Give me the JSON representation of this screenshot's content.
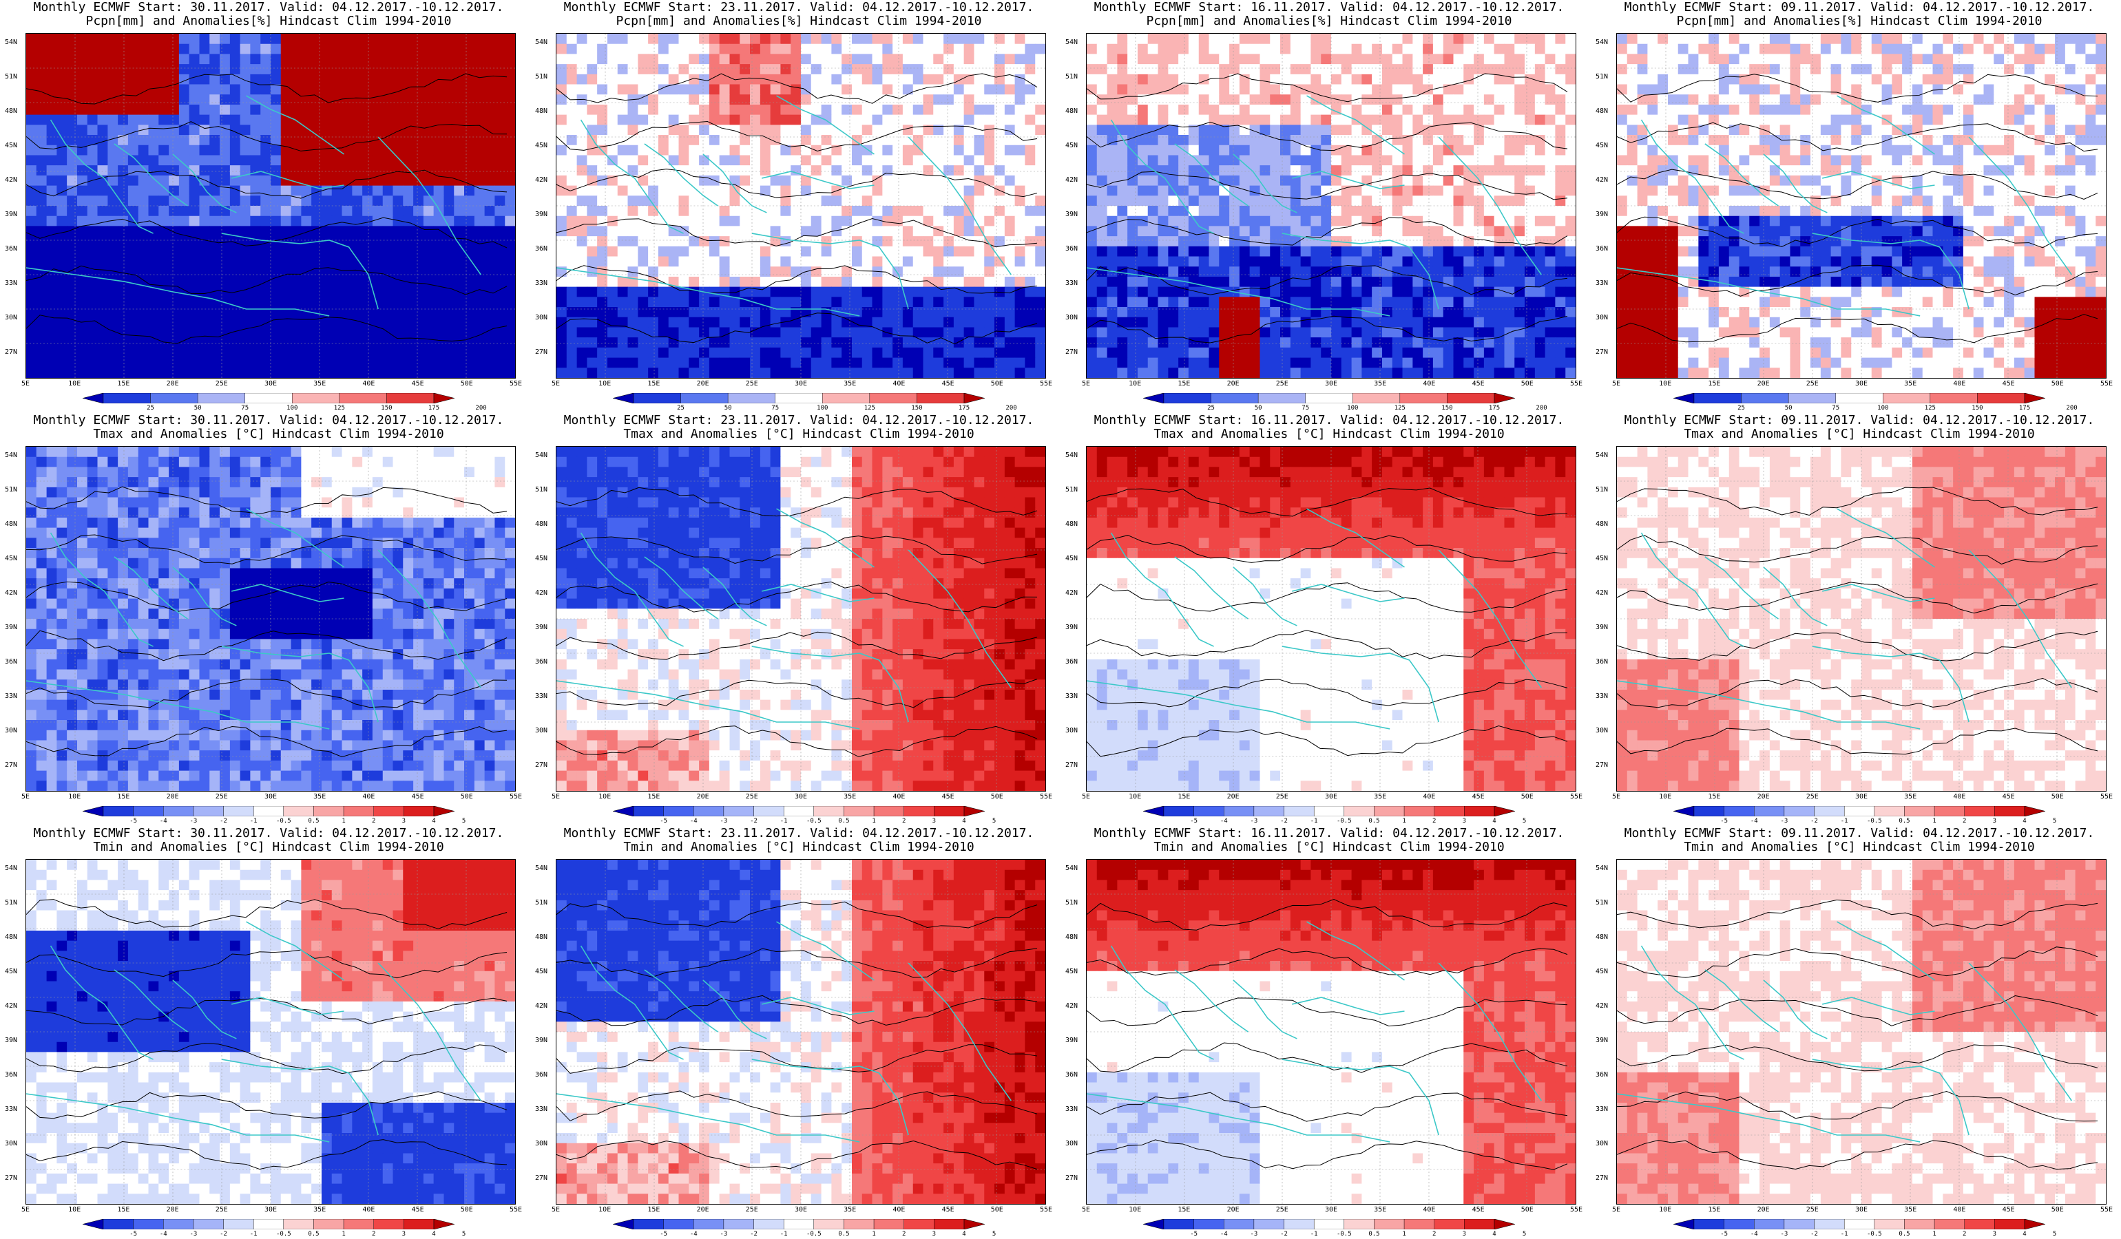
{
  "panels": [
    {
      "title1": "Monthly ECMWF Start: 30.11.2017. Valid: 04.12.2017.-10.12.2017.",
      "title2": "Pcpn[mm] and Anomalies[%] Hindcast Clim 1994-2010",
      "kind": "pcpn",
      "scheme": "strong-wet-east"
    },
    {
      "title1": "Monthly ECMWF Start: 23.11.2017. Valid: 04.12.2017.-10.12.2017.",
      "title2": "Pcpn[mm] and Anomalies[%] Hindcast Clim 1994-2010",
      "kind": "pcpn",
      "scheme": "mild"
    },
    {
      "title1": "Monthly ECMWF Start: 16.11.2017. Valid: 04.12.2017.-10.12.2017.",
      "title2": "Pcpn[mm] and Anomalies[%] Hindcast Clim 1994-2010",
      "kind": "pcpn",
      "scheme": "dry-south"
    },
    {
      "title1": "Monthly ECMWF Start: 09.11.2017. Valid: 04.12.2017.-10.12.2017.",
      "title2": "Pcpn[mm] and Anomalies[%] Hindcast Clim 1994-2010",
      "kind": "pcpn",
      "scheme": "mixed"
    },
    {
      "title1": "Monthly ECMWF Start: 30.11.2017. Valid: 04.12.2017.-10.12.2017.",
      "title2": "Tmax and Anomalies [°C] Hindcast Clim 1994-2010",
      "kind": "temp",
      "scheme": "cold"
    },
    {
      "title1": "Monthly ECMWF Start: 23.11.2017. Valid: 04.12.2017.-10.12.2017.",
      "title2": "Tmax and Anomalies [°C] Hindcast Clim 1994-2010",
      "kind": "temp",
      "scheme": "west-cold-east-warm"
    },
    {
      "title1": "Monthly ECMWF Start: 16.11.2017. Valid: 04.12.2017.-10.12.2017.",
      "title2": "Tmax and Anomalies [°C] Hindcast Clim 1994-2010",
      "kind": "temp",
      "scheme": "warm-north"
    },
    {
      "title1": "Monthly ECMWF Start: 09.11.2017. Valid: 04.12.2017.-10.12.2017.",
      "title2": "Tmax and Anomalies [°C] Hindcast Clim 1994-2010",
      "kind": "temp",
      "scheme": "mild-warm"
    },
    {
      "title1": "Monthly ECMWF Start: 30.11.2017. Valid: 04.12.2017.-10.12.2017.",
      "title2": "Tmin and Anomalies [°C] Hindcast Clim 1994-2010",
      "kind": "temp",
      "scheme": "cold-mixed"
    },
    {
      "title1": "Monthly ECMWF Start: 23.11.2017. Valid: 04.12.2017.-10.12.2017.",
      "title2": "Tmin and Anomalies [°C] Hindcast Clim 1994-2010",
      "kind": "temp",
      "scheme": "west-cold-east-warm"
    },
    {
      "title1": "Monthly ECMWF Start: 16.11.2017. Valid: 04.12.2017.-10.12.2017.",
      "title2": "Tmin and Anomalies [°C] Hindcast Clim 1994-2010",
      "kind": "temp",
      "scheme": "warm-north"
    },
    {
      "title1": "Monthly ECMWF Start: 09.11.2017. Valid: 04.12.2017.-10.12.2017.",
      "title2": "Tmin and Anomalies [°C] Hindcast Clim 1994-2010",
      "kind": "temp",
      "scheme": "mild-warm"
    }
  ],
  "axes": {
    "lat_labels": [
      "54N",
      "51N",
      "48N",
      "45N",
      "42N",
      "39N",
      "36N",
      "33N",
      "30N",
      "27N"
    ],
    "lon_labels": [
      "5E",
      "10E",
      "15E",
      "20E",
      "25E",
      "30E",
      "35E",
      "40E",
      "45E",
      "50E",
      "55E"
    ]
  },
  "colorbars": {
    "pcpn": {
      "ticks": [
        "25",
        "50",
        "75",
        "100",
        "125",
        "150",
        "175",
        "200"
      ],
      "colors": [
        "#0000b4",
        "#1e3cdc",
        "#5a78f0",
        "#aab4f5",
        "#ffffff",
        "#fab4b4",
        "#f57878",
        "#e63c3c",
        "#b40000"
      ]
    },
    "temp": {
      "ticks": [
        "-5",
        "-4",
        "-3",
        "-2",
        "-1",
        "-0.5",
        "0.5",
        "1",
        "2",
        "3",
        "4",
        "5"
      ],
      "colors": [
        "#0000b4",
        "#1e3cdc",
        "#4664f0",
        "#7890f5",
        "#a5b4f8",
        "#d2dcfb",
        "#ffffff",
        "#fbd2d2",
        "#f8a5a5",
        "#f57878",
        "#f04646",
        "#dc1e1e",
        "#b40000"
      ]
    }
  },
  "colors": {
    "coast": "#3cc8c8",
    "contour": "#000000",
    "grid": "#999999"
  }
}
